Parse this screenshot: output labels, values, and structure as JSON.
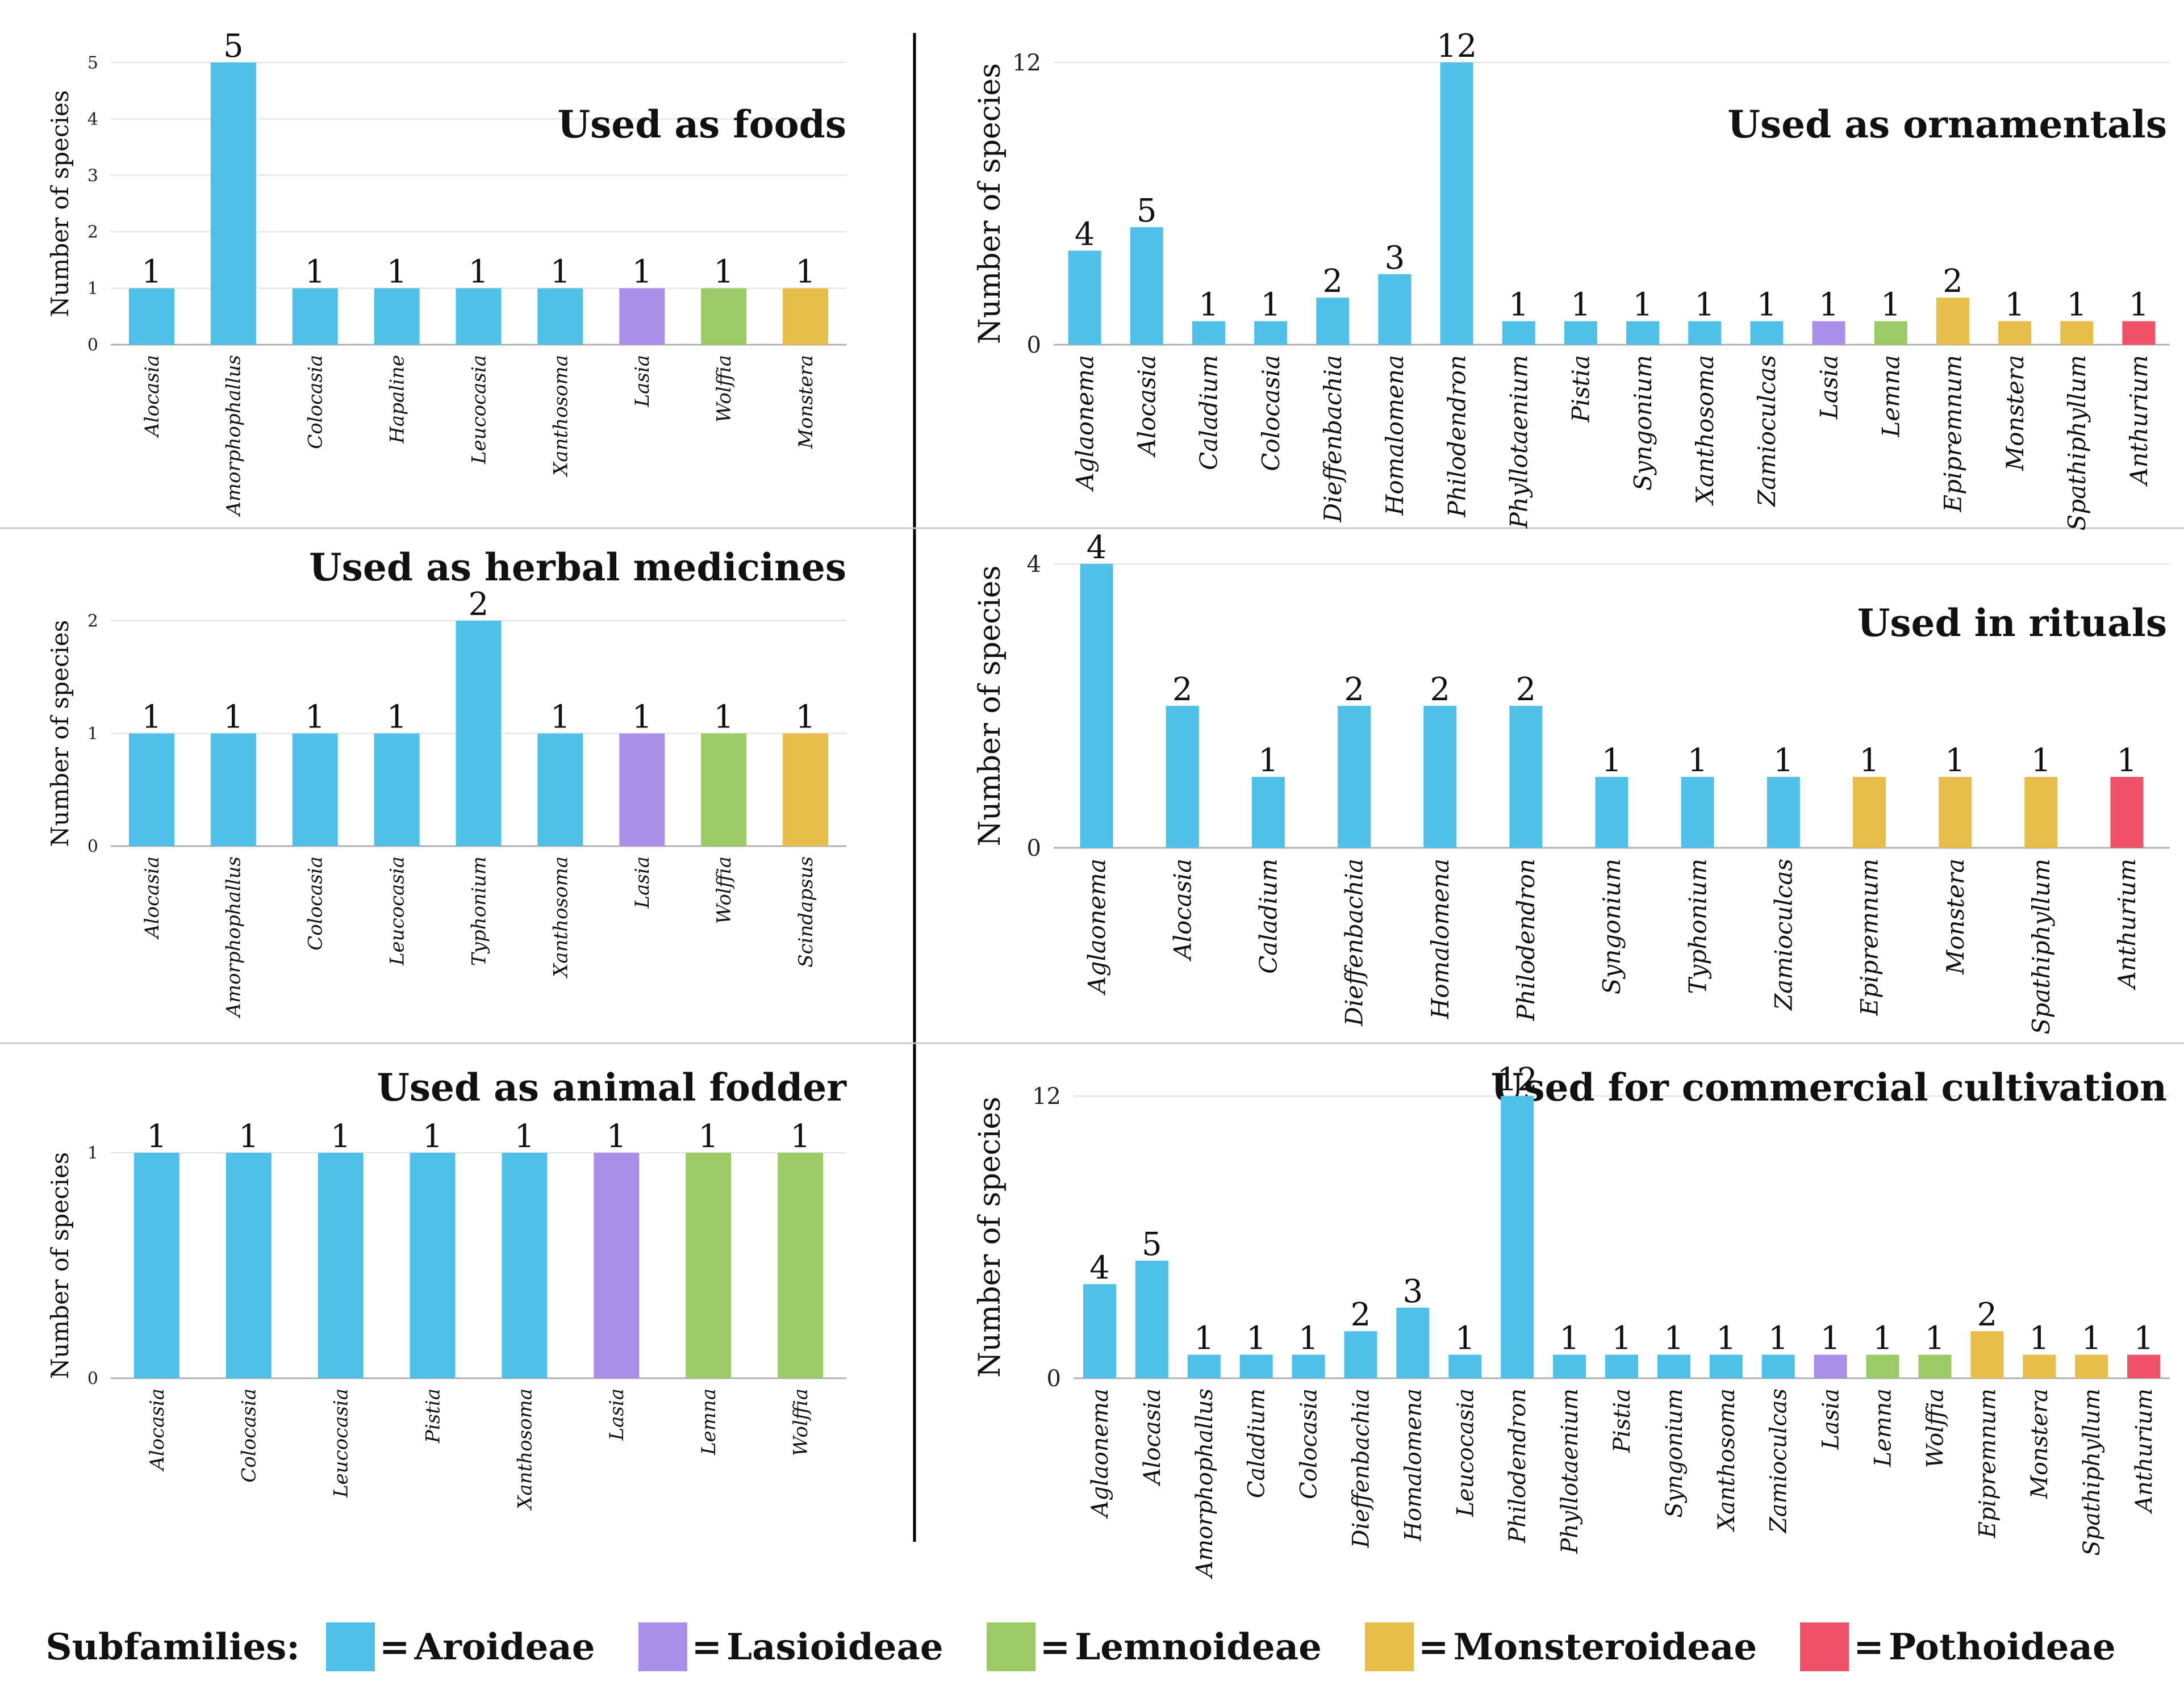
{
  "colors": {
    "Aroideae": "#4FC0E8",
    "Lasioideae": "#A98FE8",
    "Lemnoideae": "#9CCB66",
    "Monsteroideae": "#E8BE4A",
    "Pothoideae": "#EE5168"
  },
  "legend": {
    "title": "Subfamilies:",
    "eq": "=",
    "items": [
      {
        "name": "Aroideae",
        "color": "#4FC0E8"
      },
      {
        "name": "Lasioideae",
        "color": "#A98FE8"
      },
      {
        "name": "Lemnoideae",
        "color": "#9CCB66"
      },
      {
        "name": "Monsteroideae",
        "color": "#E8BE4A"
      },
      {
        "name": "Pothoideae",
        "color": "#EE5168"
      }
    ]
  },
  "chart_data": [
    {
      "type": "bar",
      "title": "Used as foods",
      "ylabel": "Number of species",
      "xlabel": "",
      "ylim": [
        0,
        5
      ],
      "yticks": [
        0,
        1,
        2,
        3,
        4,
        5
      ],
      "categories": [
        "Alocasia",
        "Amorphophallus",
        "Colocasia",
        "Hapaline",
        "Leucocasia",
        "Xanthosoma",
        "Lasia",
        "Wolffia",
        "Monstera"
      ],
      "values": [
        1,
        5,
        1,
        1,
        1,
        1,
        1,
        1,
        1
      ],
      "subfamilies": [
        "Aroideae",
        "Aroideae",
        "Aroideae",
        "Aroideae",
        "Aroideae",
        "Aroideae",
        "Lasioideae",
        "Lemnoideae",
        "Monsteroideae"
      ]
    },
    {
      "type": "bar",
      "title": "Used as ornamentals",
      "ylabel": "Number of species",
      "xlabel": "",
      "ylim": [
        0,
        12
      ],
      "yticks": [
        0,
        12
      ],
      "categories": [
        "Aglaonema",
        "Alocasia",
        "Caladium",
        "Colocasia",
        "Dieffenbachia",
        "Homalomena",
        "Philodendron",
        "Phyllotaenium",
        "Pistia",
        "Syngonium",
        "Xanthosoma",
        "Zamioculcas",
        "Lasia",
        "Lemna",
        "Epipremnum",
        "Monstera",
        "Spathiphyllum",
        "Anthurium"
      ],
      "values": [
        4,
        5,
        1,
        1,
        2,
        3,
        12,
        1,
        1,
        1,
        1,
        1,
        1,
        1,
        2,
        1,
        1,
        1
      ],
      "subfamilies": [
        "Aroideae",
        "Aroideae",
        "Aroideae",
        "Aroideae",
        "Aroideae",
        "Aroideae",
        "Aroideae",
        "Aroideae",
        "Aroideae",
        "Aroideae",
        "Aroideae",
        "Aroideae",
        "Lasioideae",
        "Lemnoideae",
        "Monsteroideae",
        "Monsteroideae",
        "Monsteroideae",
        "Pothoideae"
      ]
    },
    {
      "type": "bar",
      "title": "Used as herbal medicines",
      "ylabel": "Number of species",
      "xlabel": "",
      "ylim": [
        0,
        2
      ],
      "yticks": [
        0,
        1,
        2
      ],
      "categories": [
        "Alocasia",
        "Amorphophallus",
        "Colocasia",
        "Leucocasia",
        "Typhonium",
        "Xanthosoma",
        "Lasia",
        "Wolffia",
        "Scindapsus"
      ],
      "values": [
        1,
        1,
        1,
        1,
        2,
        1,
        1,
        1,
        1
      ],
      "subfamilies": [
        "Aroideae",
        "Aroideae",
        "Aroideae",
        "Aroideae",
        "Aroideae",
        "Aroideae",
        "Lasioideae",
        "Lemnoideae",
        "Monsteroideae"
      ]
    },
    {
      "type": "bar",
      "title": "Used in rituals",
      "ylabel": "Number of species",
      "xlabel": "",
      "ylim": [
        0,
        4
      ],
      "yticks": [
        0,
        4
      ],
      "categories": [
        "Aglaonema",
        "Alocasia",
        "Caladium",
        "Dieffenbachia",
        "Homalomena",
        "Philodendron",
        "Syngonium",
        "Typhonium",
        "Zamioculcas",
        "Epipremnum",
        "Monstera",
        "Spathiphyllum",
        "Anthurium"
      ],
      "values": [
        4,
        2,
        1,
        2,
        2,
        2,
        1,
        1,
        1,
        1,
        1,
        1,
        1
      ],
      "subfamilies": [
        "Aroideae",
        "Aroideae",
        "Aroideae",
        "Aroideae",
        "Aroideae",
        "Aroideae",
        "Aroideae",
        "Aroideae",
        "Aroideae",
        "Monsteroideae",
        "Monsteroideae",
        "Monsteroideae",
        "Pothoideae"
      ]
    },
    {
      "type": "bar",
      "title": "Used as animal fodder",
      "ylabel": "Number of species",
      "xlabel": "",
      "ylim": [
        0,
        1
      ],
      "yticks": [
        0,
        1
      ],
      "categories": [
        "Alocasia",
        "Colocasia",
        "Leucocasia",
        "Pistia",
        "Xanthosoma",
        "Lasia",
        "Lemna",
        "Wolffia"
      ],
      "values": [
        1,
        1,
        1,
        1,
        1,
        1,
        1,
        1
      ],
      "subfamilies": [
        "Aroideae",
        "Aroideae",
        "Aroideae",
        "Aroideae",
        "Aroideae",
        "Lasioideae",
        "Lemnoideae",
        "Lemnoideae"
      ]
    },
    {
      "type": "bar",
      "title": "Used for commercial cultivation",
      "ylabel": "Number of species",
      "xlabel": "",
      "ylim": [
        0,
        12
      ],
      "yticks": [
        0,
        12
      ],
      "categories": [
        "Aglaonema",
        "Alocasia",
        "Amorphophallus",
        "Caladium",
        "Colocasia",
        "Dieffenbachia",
        "Homalomena",
        "Leucocasia",
        "Philodendron",
        "Phyllotaenium",
        "Pistia",
        "Syngonium",
        "Xanthosoma",
        "Zamioculcas",
        "Lasia",
        "Lemna",
        "Wolffia",
        "Epipremnum",
        "Monstera",
        "Spathiphyllum",
        "Anthurium"
      ],
      "values": [
        4,
        5,
        1,
        1,
        1,
        2,
        3,
        1,
        12,
        1,
        1,
        1,
        1,
        1,
        1,
        1,
        1,
        2,
        1,
        1,
        1
      ],
      "subfamilies": [
        "Aroideae",
        "Aroideae",
        "Aroideae",
        "Aroideae",
        "Aroideae",
        "Aroideae",
        "Aroideae",
        "Aroideae",
        "Aroideae",
        "Aroideae",
        "Aroideae",
        "Aroideae",
        "Aroideae",
        "Aroideae",
        "Lasioideae",
        "Lemnoideae",
        "Lemnoideae",
        "Monsteroideae",
        "Monsteroideae",
        "Monsteroideae",
        "Pothoideae"
      ]
    }
  ]
}
